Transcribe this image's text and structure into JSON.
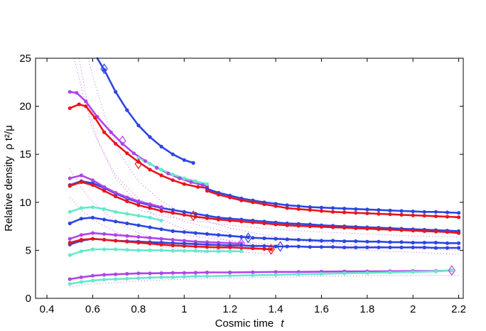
{
  "chart_data": {
    "type": "line",
    "title": "",
    "xlabel": "Cosmic time",
    "xlabel_var": "t",
    "ylabel": "Relative density",
    "ylabel_expr": "ρ t²/μ",
    "xlim": [
      0.35,
      2.22
    ],
    "ylim": [
      0,
      25
    ],
    "xticks": [
      0.4,
      0.6,
      0.8,
      1,
      1.2,
      1.4,
      1.6,
      1.8,
      2,
      2.2
    ],
    "xtick_labels": [
      "0.4",
      "0.6",
      "0.8",
      "1",
      "1.2",
      "1.4",
      "1.6",
      "1.8",
      "2",
      "2.2"
    ],
    "yticks": [
      0,
      5,
      10,
      15,
      20,
      25
    ],
    "ytick_labels": [
      "0",
      "5",
      "10",
      "15",
      "20",
      "25"
    ],
    "colors": {
      "blue": "#2d45e0",
      "red": "#e8141c",
      "purple": "#b044e8",
      "cyan": "#66e8cc",
      "dotted_magenta": "#c060e0"
    },
    "series": [
      {
        "name": "blue-top",
        "color": "blue",
        "x": [
          0.62,
          0.65,
          0.7,
          0.75,
          0.8,
          0.85,
          0.9,
          0.95,
          1.0,
          1.04
        ],
        "y": [
          25.2,
          23.8,
          21.5,
          19.6,
          18.0,
          16.8,
          15.8,
          15.0,
          14.4,
          14.1
        ],
        "marker": {
          "x": 0.65,
          "y": 23.9
        }
      },
      {
        "name": "purple-top",
        "color": "purple",
        "x": [
          0.5,
          0.53,
          0.57,
          0.62,
          0.68,
          0.73,
          0.78,
          0.83,
          0.88,
          0.93,
          0.98,
          1.03,
          1.08,
          1.1
        ],
        "y": [
          21.5,
          21.4,
          20.5,
          18.9,
          17.3,
          16.1,
          15.1,
          14.3,
          13.6,
          13.0,
          12.5,
          12.1,
          11.8,
          11.7
        ],
        "marker": {
          "x": 0.73,
          "y": 16.4
        }
      },
      {
        "name": "red-top",
        "color": "red",
        "x": [
          0.5,
          0.54,
          0.57,
          0.61,
          0.65,
          0.7,
          0.75,
          0.8,
          0.85,
          0.9,
          0.95,
          1.0,
          1.06,
          1.1
        ],
        "y": [
          19.8,
          20.2,
          20.0,
          18.8,
          17.3,
          16.1,
          15.1,
          14.2,
          13.4,
          12.8,
          12.3,
          11.9,
          11.6,
          11.5
        ],
        "marker": {
          "x": 0.8,
          "y": 14.0
        }
      },
      {
        "name": "cyan-top",
        "color": "cyan",
        "x": [
          0.8,
          0.85,
          0.9,
          0.95,
          1.0,
          1.05,
          1.1
        ],
        "y": [
          14.6,
          14.0,
          13.4,
          12.9,
          12.5,
          12.2,
          11.9
        ]
      },
      {
        "name": "blue-long-upper",
        "color": "blue",
        "x": [
          0.5,
          0.55,
          0.6,
          0.65,
          0.7,
          0.75,
          0.8,
          0.85,
          0.9,
          0.95,
          1.0,
          1.05,
          1.1,
          1.15,
          1.2,
          1.25,
          1.3,
          1.35,
          1.4,
          1.45,
          1.5,
          1.55,
          1.6,
          1.65,
          1.7,
          1.75,
          1.8,
          1.85,
          1.9,
          1.95,
          2.0,
          2.05,
          2.1,
          2.15,
          2.2
        ],
        "y": [
          11.8,
          12.2,
          12.0,
          11.5,
          10.9,
          10.4,
          10.0,
          9.7,
          9.4,
          9.2,
          9.0,
          8.8,
          8.6,
          8.4,
          8.3,
          8.2,
          8.1,
          8.0,
          7.9,
          7.8,
          7.75,
          7.7,
          7.6,
          7.55,
          7.5,
          7.45,
          7.4,
          7.35,
          7.3,
          7.25,
          7.2,
          7.15,
          7.1,
          7.05,
          7.0
        ]
      },
      {
        "name": "blue-long-top-tail",
        "color": "blue",
        "x": [
          1.1,
          1.15,
          1.2,
          1.25,
          1.3,
          1.35,
          1.4,
          1.45,
          1.5,
          1.55,
          1.6,
          1.65,
          1.7,
          1.75,
          1.8,
          1.85,
          1.9,
          1.95,
          2.0,
          2.05,
          2.1,
          2.15,
          2.2
        ],
        "y": [
          11.4,
          11.0,
          10.7,
          10.4,
          10.2,
          10.0,
          9.85,
          9.7,
          9.6,
          9.5,
          9.45,
          9.4,
          9.35,
          9.3,
          9.25,
          9.2,
          9.15,
          9.1,
          9.05,
          9.0,
          9.0,
          8.95,
          8.9
        ]
      },
      {
        "name": "red-long",
        "color": "red",
        "x": [
          1.1,
          1.15,
          1.2,
          1.25,
          1.3,
          1.35,
          1.4,
          1.45,
          1.5,
          1.55,
          1.6,
          1.65,
          1.7,
          1.75,
          1.8,
          1.85,
          1.9,
          1.95,
          2.0,
          2.05,
          2.1,
          2.15,
          2.2
        ],
        "y": [
          11.2,
          10.8,
          10.5,
          10.2,
          10.0,
          9.8,
          9.6,
          9.4,
          9.3,
          9.2,
          9.1,
          9.0,
          8.95,
          8.9,
          8.85,
          8.8,
          8.75,
          8.7,
          8.65,
          8.6,
          8.55,
          8.5,
          8.45
        ]
      },
      {
        "name": "purple-mid",
        "color": "purple",
        "x": [
          0.5,
          0.55,
          0.6,
          0.65,
          0.7,
          0.75,
          0.8,
          0.85,
          0.9
        ],
        "y": [
          12.5,
          12.8,
          12.3,
          11.6,
          11.0,
          10.5,
          10.1,
          9.8,
          9.5
        ]
      },
      {
        "name": "red-mid",
        "color": "red",
        "x": [
          0.5,
          0.55,
          0.6,
          0.65,
          0.7,
          0.75,
          0.8,
          0.85,
          0.9,
          0.95,
          1.0,
          1.05,
          1.1,
          1.15,
          1.2,
          1.25,
          1.3,
          1.35,
          1.4,
          1.45,
          1.5,
          1.55,
          1.6,
          1.65,
          1.7,
          1.75,
          1.8,
          1.85,
          1.9,
          1.95,
          2.0,
          2.05,
          2.1,
          2.15,
          2.2
        ],
        "y": [
          11.7,
          12.1,
          11.8,
          11.2,
          10.6,
          10.1,
          9.7,
          9.4,
          9.1,
          8.9,
          8.7,
          8.5,
          8.35,
          8.2,
          8.1,
          8.0,
          7.9,
          7.8,
          7.7,
          7.6,
          7.55,
          7.5,
          7.45,
          7.4,
          7.35,
          7.3,
          7.25,
          7.2,
          7.15,
          7.1,
          7.05,
          7.0,
          6.95,
          6.9,
          6.8
        ],
        "marker": {
          "x": 1.04,
          "y": 8.6
        }
      },
      {
        "name": "cyan-mid",
        "color": "cyan",
        "x": [
          0.5,
          0.55,
          0.6,
          0.65,
          0.7,
          0.75,
          0.8,
          0.85,
          0.9
        ],
        "y": [
          9.0,
          9.4,
          9.5,
          9.3,
          9.0,
          8.8,
          8.6,
          8.4,
          8.1
        ]
      },
      {
        "name": "blue-mid",
        "color": "blue",
        "x": [
          0.5,
          0.55,
          0.6,
          0.65,
          0.7,
          0.75,
          0.8,
          0.85,
          0.9,
          0.95,
          1.0,
          1.05,
          1.1,
          1.15,
          1.2,
          1.25,
          1.28
        ],
        "y": [
          7.8,
          8.3,
          8.4,
          8.2,
          8.0,
          7.8,
          7.6,
          7.4,
          7.2,
          7.0,
          6.9,
          6.8,
          6.7,
          6.6,
          6.5,
          6.4,
          6.35
        ],
        "marker": {
          "x": 1.28,
          "y": 6.3
        }
      },
      {
        "name": "blue-lower-long",
        "color": "blue",
        "x": [
          1.3,
          1.35,
          1.4,
          1.45,
          1.5,
          1.55,
          1.6,
          1.65,
          1.7,
          1.75,
          1.8,
          1.85,
          1.9,
          1.95,
          2.0,
          2.05,
          2.1,
          2.15,
          2.2
        ],
        "y": [
          6.3,
          6.25,
          6.2,
          6.15,
          6.1,
          6.05,
          6.0,
          6.0,
          5.95,
          5.95,
          5.9,
          5.9,
          5.85,
          5.85,
          5.8,
          5.8,
          5.8,
          5.75,
          5.75
        ]
      },
      {
        "name": "purple-low",
        "color": "purple",
        "x": [
          0.5,
          0.55,
          0.6,
          0.65,
          0.7,
          0.75,
          0.8,
          0.85,
          0.9,
          0.95,
          1.0,
          1.05,
          1.1,
          1.15,
          1.2,
          1.25
        ],
        "y": [
          6.2,
          6.6,
          6.8,
          6.7,
          6.6,
          6.5,
          6.4,
          6.3,
          6.2,
          6.1,
          6.0,
          5.9,
          5.85,
          5.8,
          5.75,
          5.7
        ],
        "marker": {
          "x": 1.25,
          "y": 5.7
        }
      },
      {
        "name": "blue-low",
        "color": "blue",
        "x": [
          0.5,
          0.55,
          0.6,
          0.65,
          0.7,
          0.75,
          0.8,
          0.85,
          0.9,
          0.95,
          1.0,
          1.05,
          1.1,
          1.15,
          1.2,
          1.25,
          1.3,
          1.35,
          1.4,
          1.45,
          1.5,
          1.55,
          1.6,
          1.65,
          1.7,
          1.75,
          1.8,
          1.85,
          1.9,
          1.95,
          2.0,
          2.05,
          2.1,
          2.15,
          2.2
        ],
        "y": [
          5.6,
          6.0,
          6.2,
          6.1,
          6.0,
          5.95,
          5.9,
          5.85,
          5.8,
          5.75,
          5.7,
          5.65,
          5.6,
          5.55,
          5.5,
          5.5,
          5.45,
          5.45,
          5.4,
          5.4,
          5.4,
          5.35,
          5.35,
          5.35,
          5.3,
          5.3,
          5.3,
          5.3,
          5.3,
          5.3,
          5.3,
          5.3,
          5.25,
          5.25,
          5.25
        ],
        "marker": {
          "x": 1.42,
          "y": 5.4
        }
      },
      {
        "name": "red-low",
        "color": "red",
        "x": [
          0.5,
          0.55,
          0.6,
          0.65,
          0.7,
          0.75,
          0.8,
          0.85,
          0.9,
          0.95,
          1.0,
          1.05,
          1.1,
          1.15,
          1.2,
          1.25,
          1.3,
          1.35,
          1.38
        ],
        "y": [
          5.8,
          6.1,
          6.2,
          6.1,
          6.0,
          5.9,
          5.8,
          5.7,
          5.6,
          5.5,
          5.45,
          5.4,
          5.35,
          5.3,
          5.3,
          5.25,
          5.2,
          5.15,
          5.1
        ],
        "marker": {
          "x": 1.38,
          "y": 5.1
        }
      },
      {
        "name": "cyan-low",
        "color": "cyan",
        "x": [
          0.5,
          0.55,
          0.6,
          0.65,
          0.7,
          0.75,
          0.8,
          0.85,
          0.9,
          0.95,
          1.0,
          1.05,
          1.1,
          1.15,
          1.2,
          1.25
        ],
        "y": [
          4.5,
          4.9,
          5.1,
          5.1,
          5.1,
          5.05,
          5.0,
          5.0,
          5.0,
          4.95,
          4.95,
          4.95,
          4.9,
          4.9,
          4.9,
          4.9
        ]
      },
      {
        "name": "purple-bottom",
        "color": "purple",
        "x": [
          0.5,
          0.55,
          0.6,
          0.65,
          0.7,
          0.75,
          0.8,
          0.85,
          0.9,
          0.95,
          1.0,
          1.05,
          1.1,
          1.2,
          1.3,
          1.4,
          1.5,
          1.6,
          1.7,
          1.8,
          1.9,
          2.0,
          2.1,
          2.17
        ],
        "y": [
          2.0,
          2.2,
          2.35,
          2.45,
          2.5,
          2.55,
          2.6,
          2.6,
          2.62,
          2.65,
          2.65,
          2.67,
          2.7,
          2.7,
          2.72,
          2.75,
          2.75,
          2.78,
          2.8,
          2.8,
          2.82,
          2.85,
          2.85,
          2.9
        ],
        "marker": {
          "x": 2.17,
          "y": 2.9
        }
      },
      {
        "name": "cyan-bottom",
        "color": "cyan",
        "x": [
          0.5,
          0.55,
          0.6,
          0.65,
          0.7,
          0.75,
          0.8,
          0.85,
          0.9,
          0.95,
          1.0,
          1.05,
          1.1,
          1.2,
          1.3,
          1.4,
          1.5,
          1.6,
          1.7,
          1.8,
          1.9,
          2.0,
          2.1,
          2.17
        ],
        "y": [
          1.5,
          1.7,
          1.85,
          1.95,
          2.0,
          2.05,
          2.1,
          2.15,
          2.2,
          2.2,
          2.25,
          2.3,
          2.3,
          2.35,
          2.4,
          2.45,
          2.5,
          2.55,
          2.6,
          2.65,
          2.7,
          2.75,
          2.8,
          2.9
        ]
      }
    ],
    "dotted_curves": [
      {
        "x": [
          0.52,
          0.55,
          0.6,
          0.7,
          0.8,
          0.9,
          1.0,
          1.2
        ],
        "y": [
          25,
          22,
          17.5,
          12.8,
          10.4,
          9.0,
          8.0,
          6.8
        ]
      },
      {
        "x": [
          0.54,
          0.58,
          0.62,
          0.7,
          0.8,
          0.9,
          1.0,
          1.2,
          1.4
        ],
        "y": [
          25,
          20,
          16.5,
          12.5,
          9.8,
          8.2,
          7.2,
          6.0,
          5.3
        ]
      },
      {
        "x": [
          0.58,
          0.62,
          0.66,
          0.72,
          0.8,
          0.9,
          1.0,
          1.2,
          1.4,
          1.6
        ],
        "y": [
          25,
          21.5,
          18.5,
          15.0,
          12.2,
          10.1,
          8.8,
          7.3,
          6.4,
          5.9
        ]
      },
      {
        "x": [
          0.5,
          0.55,
          0.6,
          0.7,
          0.8,
          0.9,
          1.0,
          1.1
        ],
        "y": [
          10.5,
          9.2,
          8.2,
          6.9,
          6.0,
          5.4,
          5.0,
          4.7
        ]
      },
      {
        "x": [
          0.5,
          0.55,
          0.6,
          0.7,
          0.8,
          0.9,
          1.0,
          1.2,
          1.4
        ],
        "y": [
          13.5,
          11.5,
          10.0,
          8.0,
          6.8,
          6.0,
          5.5,
          4.9,
          4.6
        ]
      },
      {
        "x": [
          0.8,
          0.9,
          1.0,
          1.2,
          1.4,
          1.6,
          1.8,
          2.0,
          2.2
        ],
        "y": [
          9.2,
          8.6,
          8.2,
          7.6,
          7.2,
          6.9,
          6.7,
          6.5,
          6.4
        ]
      },
      {
        "x": [
          1.0,
          1.2,
          1.4,
          1.6,
          1.8,
          2.0,
          2.2
        ],
        "y": [
          7.0,
          6.6,
          6.2,
          5.8,
          5.5,
          5.2,
          5.0
        ]
      },
      {
        "x": [
          1.0,
          1.2,
          1.4,
          1.6,
          1.8,
          2.0,
          2.2
        ],
        "y": [
          6.6,
          6.0,
          5.6,
          5.3,
          5.0,
          4.8,
          4.6
        ]
      },
      {
        "x": [
          0.5,
          0.6,
          0.8,
          1.0,
          1.2,
          1.4,
          1.6,
          1.8,
          2.0,
          2.2
        ],
        "y": [
          1.2,
          1.5,
          1.8,
          2.0,
          2.1,
          2.2,
          2.3,
          2.35,
          2.4,
          2.4
        ]
      },
      {
        "x": [
          0.6,
          0.8,
          1.0,
          1.2,
          1.4,
          1.6,
          1.8,
          2.0,
          2.2
        ],
        "y": [
          12.0,
          10.2,
          9.0,
          8.3,
          7.8,
          7.5,
          7.3,
          7.1,
          7.0
        ]
      }
    ]
  }
}
